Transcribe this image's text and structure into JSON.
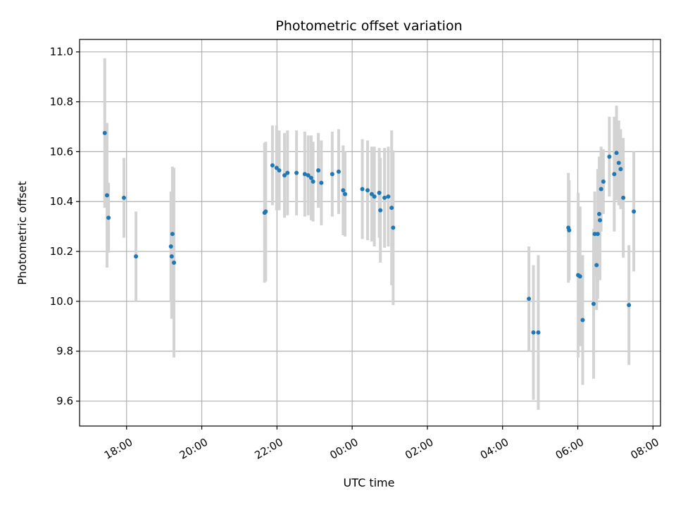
{
  "chart_data": {
    "type": "scatter",
    "title": "Photometric offset variation",
    "xlabel": "UTC time",
    "ylabel": "Photometric offset",
    "x_unit": "hours (UTC, continuing past midnight as 24+)",
    "xlim": [
      16.75,
      32.2
    ],
    "ylim": [
      9.5,
      11.05
    ],
    "grid": true,
    "x_ticks": [
      {
        "value": 18,
        "label": "18:00"
      },
      {
        "value": 20,
        "label": "20:00"
      },
      {
        "value": 22,
        "label": "22:00"
      },
      {
        "value": 24,
        "label": "00:00"
      },
      {
        "value": 26,
        "label": "02:00"
      },
      {
        "value": 28,
        "label": "04:00"
      },
      {
        "value": 30,
        "label": "06:00"
      },
      {
        "value": 32,
        "label": "08:00"
      }
    ],
    "y_ticks": [
      {
        "value": 9.6,
        "label": "9.6"
      },
      {
        "value": 9.8,
        "label": "9.8"
      },
      {
        "value": 10.0,
        "label": "10.0"
      },
      {
        "value": 10.2,
        "label": "10.2"
      },
      {
        "value": 10.4,
        "label": "10.4"
      },
      {
        "value": 10.6,
        "label": "10.6"
      },
      {
        "value": 10.8,
        "label": "10.8"
      },
      {
        "value": 11.0,
        "label": "11.0"
      }
    ],
    "colors": {
      "points": "#1f77b4",
      "errorbars": "#d3d3d3",
      "grid": "#b0b0b0"
    },
    "series": [
      {
        "x": [
          17.42,
          17.48,
          17.52,
          17.93,
          18.25,
          19.18,
          19.2,
          19.22,
          19.26,
          21.67,
          21.7,
          21.88,
          21.99,
          22.06,
          22.2,
          22.28,
          22.52,
          22.74,
          22.83,
          22.91,
          22.96,
          23.1,
          23.18,
          23.47,
          23.64,
          23.76,
          23.81,
          24.27,
          24.41,
          24.52,
          24.59,
          24.72,
          24.75,
          24.86,
          24.96,
          25.05,
          25.09,
          28.7,
          28.82,
          28.95,
          29.75,
          29.77,
          30.01,
          30.06,
          30.13,
          30.42,
          30.45,
          30.5,
          30.53,
          30.57,
          30.59,
          30.62,
          30.68,
          30.84,
          30.97,
          31.03,
          31.09,
          31.14,
          31.21,
          31.36,
          31.49
        ],
        "y": [
          10.675,
          10.425,
          10.335,
          10.415,
          10.18,
          10.22,
          10.18,
          10.27,
          10.155,
          10.355,
          10.36,
          10.545,
          10.535,
          10.525,
          10.505,
          10.515,
          10.515,
          10.51,
          10.505,
          10.495,
          10.48,
          10.525,
          10.475,
          10.51,
          10.52,
          10.445,
          10.43,
          10.45,
          10.445,
          10.43,
          10.42,
          10.435,
          10.365,
          10.415,
          10.42,
          10.375,
          10.295,
          10.01,
          9.875,
          9.875,
          10.295,
          10.285,
          10.105,
          10.1,
          9.925,
          9.99,
          10.27,
          10.145,
          10.27,
          10.35,
          10.325,
          10.45,
          10.48,
          10.58,
          10.51,
          10.595,
          10.555,
          10.53,
          10.415,
          9.985,
          10.36
        ],
        "yerr": [
          0.3,
          0.29,
          0.14,
          0.16,
          0.18,
          0.22,
          0.25,
          0.27,
          0.38,
          0.28,
          0.28,
          0.16,
          0.17,
          0.16,
          0.17,
          0.17,
          0.17,
          0.17,
          0.16,
          0.17,
          0.16,
          0.15,
          0.17,
          0.17,
          0.17,
          0.18,
          0.17,
          0.2,
          0.2,
          0.19,
          0.2,
          0.18,
          0.21,
          0.2,
          0.2,
          0.31,
          0.31,
          0.21,
          0.27,
          0.31,
          0.22,
          0.2,
          0.33,
          0.28,
          0.26,
          0.3,
          0.17,
          0.18,
          0.26,
          0.23,
          0.24,
          0.17,
          0.13,
          0.16,
          0.23,
          0.19,
          0.17,
          0.16,
          0.24,
          0.24,
          0.24
        ]
      }
    ]
  }
}
